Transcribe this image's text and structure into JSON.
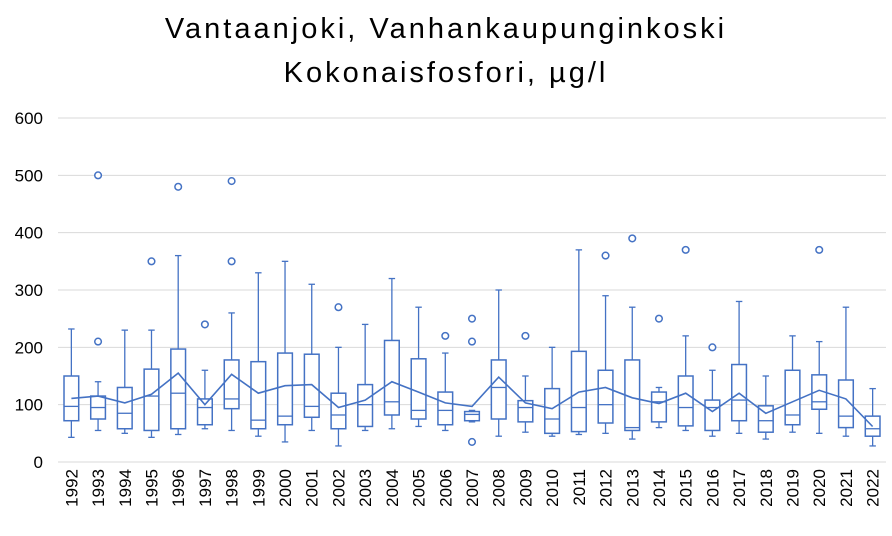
{
  "chart_data": {
    "type": "box",
    "title": "Vantaanjoki, Vanhankaupunginkoski",
    "subtitle": "Kokonaisfosfori, µg/l",
    "xlabel": "",
    "ylabel": "",
    "ylim": [
      0,
      600
    ],
    "yticks": [
      0,
      100,
      200,
      300,
      400,
      500,
      600
    ],
    "grid": true,
    "legend": "none",
    "color": "#4472C4",
    "boxes": [
      {
        "year": "1992",
        "min": 43,
        "q1": 72,
        "median": 97,
        "q3": 150,
        "max": 232,
        "mean": 111,
        "outliers": []
      },
      {
        "year": "1993",
        "min": 55,
        "q1": 75,
        "median": 95,
        "q3": 115,
        "max": 140,
        "mean": 115,
        "outliers": [
          210,
          500
        ]
      },
      {
        "year": "1994",
        "min": 50,
        "q1": 58,
        "median": 85,
        "q3": 130,
        "max": 230,
        "mean": 103,
        "outliers": []
      },
      {
        "year": "1995",
        "min": 43,
        "q1": 55,
        "median": 115,
        "q3": 162,
        "max": 230,
        "mean": 118,
        "outliers": [
          350
        ]
      },
      {
        "year": "1996",
        "min": 48,
        "q1": 58,
        "median": 120,
        "q3": 197,
        "max": 360,
        "mean": 155,
        "outliers": [
          480
        ]
      },
      {
        "year": "1997",
        "min": 58,
        "q1": 65,
        "median": 95,
        "q3": 110,
        "max": 160,
        "mean": 100,
        "outliers": [
          240
        ]
      },
      {
        "year": "1998",
        "min": 55,
        "q1": 93,
        "median": 110,
        "q3": 178,
        "max": 260,
        "mean": 153,
        "outliers": [
          350,
          490
        ]
      },
      {
        "year": "1999",
        "min": 45,
        "q1": 58,
        "median": 73,
        "q3": 175,
        "max": 330,
        "mean": 120,
        "outliers": []
      },
      {
        "year": "2000",
        "min": 35,
        "q1": 65,
        "median": 80,
        "q3": 190,
        "max": 350,
        "mean": 133,
        "outliers": []
      },
      {
        "year": "2001",
        "min": 55,
        "q1": 78,
        "median": 97,
        "q3": 188,
        "max": 310,
        "mean": 135,
        "outliers": []
      },
      {
        "year": "2002",
        "min": 28,
        "q1": 58,
        "median": 82,
        "q3": 120,
        "max": 200,
        "mean": 95,
        "outliers": [
          270
        ]
      },
      {
        "year": "2003",
        "min": 55,
        "q1": 62,
        "median": 100,
        "q3": 135,
        "max": 240,
        "mean": 108,
        "outliers": []
      },
      {
        "year": "2004",
        "min": 58,
        "q1": 82,
        "median": 105,
        "q3": 212,
        "max": 320,
        "mean": 140,
        "outliers": []
      },
      {
        "year": "2005",
        "min": 62,
        "q1": 75,
        "median": 90,
        "q3": 180,
        "max": 270,
        "mean": 122,
        "outliers": []
      },
      {
        "year": "2006",
        "min": 55,
        "q1": 65,
        "median": 90,
        "q3": 122,
        "max": 190,
        "mean": 103,
        "outliers": [
          220
        ]
      },
      {
        "year": "2007",
        "min": 70,
        "q1": 72,
        "median": 83,
        "q3": 88,
        "max": 90,
        "mean": 97,
        "outliers": [
          35,
          210,
          250
        ]
      },
      {
        "year": "2008",
        "min": 45,
        "q1": 75,
        "median": 130,
        "q3": 178,
        "max": 300,
        "mean": 148,
        "outliers": []
      },
      {
        "year": "2009",
        "min": 52,
        "q1": 70,
        "median": 95,
        "q3": 107,
        "max": 150,
        "mean": 103,
        "outliers": [
          220
        ]
      },
      {
        "year": "2010",
        "min": 45,
        "q1": 50,
        "median": 75,
        "q3": 128,
        "max": 200,
        "mean": 93,
        "outliers": []
      },
      {
        "year": "2011",
        "min": 48,
        "q1": 53,
        "median": 95,
        "q3": 193,
        "max": 370,
        "mean": 122,
        "outliers": []
      },
      {
        "year": "2012",
        "min": 50,
        "q1": 68,
        "median": 100,
        "q3": 160,
        "max": 290,
        "mean": 130,
        "outliers": [
          360
        ]
      },
      {
        "year": "2013",
        "min": 40,
        "q1": 55,
        "median": 60,
        "q3": 178,
        "max": 270,
        "mean": 112,
        "outliers": [
          390
        ]
      },
      {
        "year": "2014",
        "min": 60,
        "q1": 70,
        "median": 105,
        "q3": 122,
        "max": 130,
        "mean": 102,
        "outliers": [
          250
        ]
      },
      {
        "year": "2015",
        "min": 55,
        "q1": 63,
        "median": 95,
        "q3": 150,
        "max": 220,
        "mean": 120,
        "outliers": [
          370
        ]
      },
      {
        "year": "2016",
        "min": 45,
        "q1": 55,
        "median": 95,
        "q3": 108,
        "max": 160,
        "mean": 88,
        "outliers": [
          200
        ]
      },
      {
        "year": "2017",
        "min": 50,
        "q1": 72,
        "median": 108,
        "q3": 170,
        "max": 280,
        "mean": 120,
        "outliers": []
      },
      {
        "year": "2018",
        "min": 40,
        "q1": 52,
        "median": 72,
        "q3": 98,
        "max": 150,
        "mean": 85,
        "outliers": []
      },
      {
        "year": "2019",
        "min": 52,
        "q1": 65,
        "median": 82,
        "q3": 160,
        "max": 220,
        "mean": 105,
        "outliers": []
      },
      {
        "year": "2020",
        "min": 50,
        "q1": 92,
        "median": 105,
        "q3": 152,
        "max": 210,
        "mean": 125,
        "outliers": [
          370
        ]
      },
      {
        "year": "2021",
        "min": 45,
        "q1": 60,
        "median": 80,
        "q3": 143,
        "max": 270,
        "mean": 110,
        "outliers": []
      },
      {
        "year": "2022",
        "min": 28,
        "q1": 45,
        "median": 58,
        "q3": 80,
        "max": 128,
        "mean": 62,
        "outliers": []
      }
    ]
  }
}
